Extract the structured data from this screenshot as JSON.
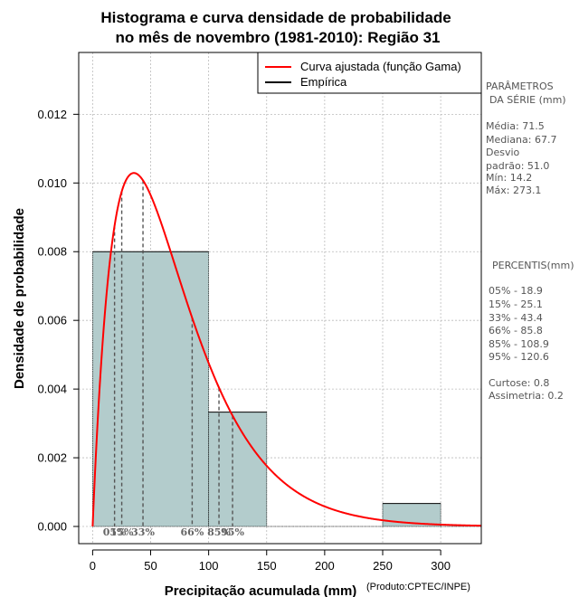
{
  "chart_data": {
    "type": "histogram",
    "title_line1": "Histograma e curva densidade de probabilidade",
    "title_line2": "no mês de novembro (1981-2010): Região 31",
    "xlabel": "Precipitação acumulada (mm)",
    "ylabel": "Densidade de probabilidade",
    "credit": "(Produto:CPTEC/INPE)",
    "xlim": [
      -12,
      335
    ],
    "ylim": [
      -0.0005,
      0.0138
    ],
    "x_ticks": [
      0,
      50,
      100,
      150,
      200,
      250,
      300
    ],
    "x_tick_labels": [
      "0",
      "50",
      "100",
      "150",
      "200",
      "250",
      "300"
    ],
    "y_ticks": [
      0,
      0.002,
      0.004,
      0.006,
      0.008,
      0.01,
      0.012
    ],
    "y_tick_labels": [
      "0.000",
      "0.002",
      "0.004",
      "0.006",
      "0.008",
      "0.010",
      "0.012"
    ],
    "bins": [
      {
        "x0": 0,
        "x1": 100,
        "density": 0.008
      },
      {
        "x0": 100,
        "x1": 150,
        "density": 0.00333
      },
      {
        "x0": 150,
        "x1": 200,
        "density": 0
      },
      {
        "x0": 200,
        "x1": 250,
        "density": 0
      },
      {
        "x0": 250,
        "x1": 300,
        "density": 0.00067
      }
    ],
    "gamma_curve": {
      "shape": 1.99,
      "scale": 35.9
    },
    "percentile_lines": [
      {
        "label": "05%",
        "value": 18.9
      },
      {
        "label": "15%",
        "value": 25.1
      },
      {
        "label": "33%",
        "value": 43.4
      },
      {
        "label": "66%",
        "value": 85.8
      },
      {
        "label": "85%",
        "value": 108.9
      },
      {
        "label": "95%",
        "value": 120.6
      }
    ],
    "legend": [
      {
        "label": "Curva ajustada (função Gama)",
        "color": "#ff0000"
      },
      {
        "label": "Empírica",
        "color": "#000000"
      }
    ],
    "colors": {
      "bar_fill": "#b3cccc",
      "curve": "#ff0000",
      "grid": "#bbbbbb"
    }
  },
  "stats_panel": {
    "params_title_1": "PARÂMETROS",
    "params_title_2": "DA SÉRIE (mm)",
    "media": "Média:  71.5",
    "mediana": "Mediana:  67.7",
    "desvio_1": "Desvio",
    "desvio_2": "padrão:  51.0",
    "min": "Mín:  14.2",
    "max": "Máx:  273.1",
    "percentis_title": "PERCENTIS(mm)",
    "p05": "05% -   18.9",
    "p15": "15% -   25.1",
    "p33": "33% -   43.4",
    "p66": "66% -   85.8",
    "p85": "85% -  108.9",
    "p95": "95% -  120.6",
    "curtose": "Curtose:  0.8",
    "assimetria": "Assimetria:  0.2"
  }
}
